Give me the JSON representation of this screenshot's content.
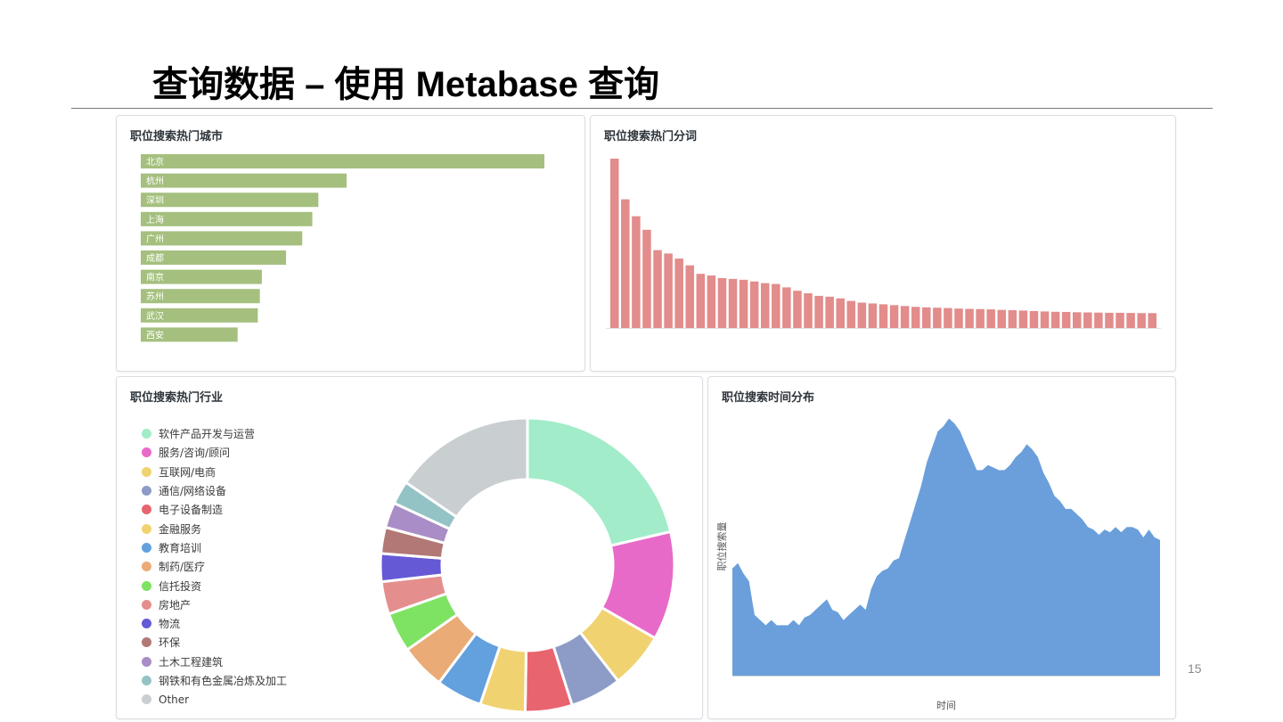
{
  "slide": {
    "title": "查询数据 – 使用 Metabase 查询",
    "page_number": "15"
  },
  "cards": {
    "cities": {
      "title": "职位搜索热门城市"
    },
    "words": {
      "title": "职位搜索热门分词"
    },
    "industries": {
      "title": "职位搜索热门行业"
    },
    "time": {
      "title": "职位搜索时间分布"
    }
  },
  "colors": {
    "cities_bar": "#a5c07e",
    "words_bar": "#e28c8b",
    "time_area": "#6a9fdb"
  },
  "chart_data": [
    {
      "id": "cities",
      "type": "bar",
      "orientation": "horizontal",
      "title": "职位搜索热门城市",
      "categories": [
        "北京",
        "杭州",
        "深圳",
        "上海",
        "广州",
        "成都",
        "南京",
        "苏州",
        "武汉",
        "西安"
      ],
      "values": [
        100,
        51,
        44,
        42.5,
        40,
        36,
        30,
        29.5,
        29,
        24
      ]
    },
    {
      "id": "words",
      "type": "bar",
      "title": "职位搜索热门分词",
      "values": [
        100,
        76,
        66,
        58,
        46,
        44,
        41,
        37,
        32,
        31,
        29.5,
        29,
        28.5,
        27.5,
        26.5,
        26,
        24,
        22,
        20.5,
        19,
        18.5,
        17.5,
        16,
        15,
        14.5,
        14,
        13.5,
        13,
        12.5,
        12.2,
        12,
        11.8,
        11.5,
        11.3,
        11.2,
        11,
        10.7,
        10.5,
        10.3,
        10,
        9.8,
        9.6,
        9.5,
        9.3,
        9.2,
        9.1,
        9,
        9,
        8.9,
        8.8,
        8.8
      ]
    },
    {
      "id": "industries",
      "type": "pie",
      "title": "职位搜索热门行业",
      "slices": [
        {
          "label": "软件产品开发与运营",
          "value": 21.5,
          "color": "#a2ecc9"
        },
        {
          "label": "服务/咨询/顾问",
          "value": 12.0,
          "color": "#e86ac8"
        },
        {
          "label": "互联网/电商",
          "value": 6.2,
          "color": "#f1d271"
        },
        {
          "label": "通信/网络设备",
          "value": 5.7,
          "color": "#8d9cc6"
        },
        {
          "label": "电子设备制造",
          "value": 5.2,
          "color": "#e8646e"
        },
        {
          "label": "金融服务",
          "value": 5.0,
          "color": "#f1d271"
        },
        {
          "label": "教育培训",
          "value": 5.1,
          "color": "#63a0de"
        },
        {
          "label": "制药/医疗",
          "value": 5.0,
          "color": "#eaab76"
        },
        {
          "label": "信托投资",
          "value": 4.4,
          "color": "#7ee263"
        },
        {
          "label": "房地产",
          "value": 3.6,
          "color": "#e48e8d"
        },
        {
          "label": "物流",
          "value": 3.1,
          "color": "#6559d6"
        },
        {
          "label": "环保",
          "value": 2.9,
          "color": "#b27876"
        },
        {
          "label": "土木工程建筑",
          "value": 2.8,
          "color": "#a98dc6"
        },
        {
          "label": "钢铁和有色金属冶炼及加工",
          "value": 2.6,
          "color": "#94c3c6"
        },
        {
          "label": "Other",
          "value": 15.6,
          "color": "#c9ced1"
        }
      ]
    },
    {
      "id": "time",
      "type": "area",
      "title": "职位搜索时间分布",
      "xlabel": "时间",
      "ylabel": "职位搜索量",
      "values": [
        42,
        43,
        40,
        36,
        24,
        21,
        20,
        21,
        20,
        19,
        20,
        21,
        20,
        22,
        24,
        25,
        28,
        29,
        26,
        24,
        22,
        23,
        26,
        27,
        26,
        33,
        39,
        40,
        42,
        44,
        46,
        52,
        60,
        66,
        74,
        82,
        89,
        94,
        97,
        99,
        98,
        94,
        90,
        84,
        80,
        79,
        82,
        80,
        80,
        79,
        82,
        84,
        87,
        89,
        88,
        84,
        79,
        74,
        70,
        67,
        65,
        64,
        63,
        60,
        58,
        56,
        55,
        56,
        56,
        57,
        56,
        57,
        58,
        56,
        54,
        56,
        54,
        52
      ]
    }
  ]
}
